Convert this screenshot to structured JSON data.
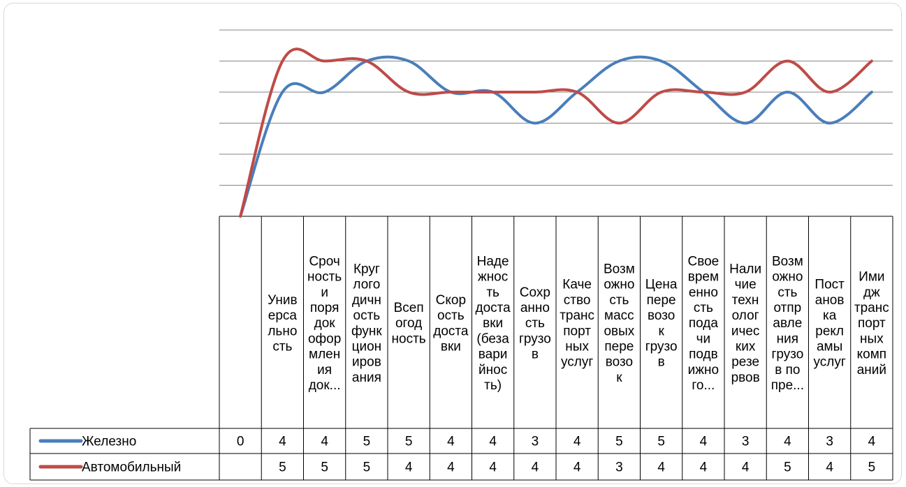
{
  "chart_data": {
    "type": "line",
    "title": "",
    "xlabel": "",
    "ylabel": "",
    "ylim": [
      0,
      6
    ],
    "grid": true,
    "legend": "data-table-left",
    "smooth": true,
    "categories": [
      "",
      "Универсальность",
      "Срочность и порядок оформления док...",
      "Круглогодичность функционирования",
      "Всепогодность",
      "Скорость доставки",
      "Надежность доставки (безаварийность)",
      "Сохранность грузов",
      "Качество транспортных услуг",
      "Возможность массовых перевозок",
      "Цена перевозок грузов",
      "Своевременность подачи подвижного...",
      "Наличие технологических резервов",
      "Возможность отправления грузов в по пре...",
      "Постановка рекламы услуг",
      "Имидж транспортных компаний"
    ],
    "category_lines": [
      [
        ""
      ],
      [
        "Унив",
        "ерса",
        "льно",
        "сть"
      ],
      [
        "Сроч",
        "ность",
        "и",
        "поря",
        "док",
        "офор",
        "млен",
        "ия",
        "док..."
      ],
      [
        "Круг",
        "лого",
        "дичн",
        "ость",
        "функ",
        "цион",
        "иров",
        "ания"
      ],
      [
        "Всеп",
        "огод",
        "ность"
      ],
      [
        "Скор",
        "ость",
        "доста",
        "вки"
      ],
      [
        "Наде",
        "жнос",
        "ть",
        "доста",
        "вки",
        "(беза",
        "вари",
        "йнос",
        "ть)"
      ],
      [
        "Сохр",
        "анно",
        "сть",
        "грузо",
        "в"
      ],
      [
        "Каче",
        "ство",
        "транс",
        "порт",
        "ных",
        "услуг"
      ],
      [
        "Возм",
        "ожно",
        "сть",
        "масс",
        "овых",
        "пере",
        "возо",
        "к"
      ],
      [
        "Цена",
        "пере",
        "возо",
        "к",
        "грузо",
        "в"
      ],
      [
        "Свое",
        "врем",
        "енно",
        "сть",
        "пода",
        "чи",
        "подв",
        "ижно",
        "го..."
      ],
      [
        "Нали",
        "чие",
        "техн",
        "олог",
        "ичес",
        "ких",
        "резе",
        "рвов"
      ],
      [
        "Возм",
        "ожно",
        "сть",
        "отпр",
        "авле",
        "ния",
        "грузо",
        "в по",
        "пре..."
      ],
      [
        "Пост",
        "анов",
        "ка",
        "рекл",
        "амы",
        "услуг"
      ],
      [
        "Ими",
        "дж",
        "транс",
        "порт",
        "ных",
        "комп",
        "аний"
      ]
    ],
    "series": [
      {
        "name": "Железно",
        "color": "#4a7ebb",
        "values": [
          0,
          4,
          4,
          5,
          5,
          4,
          4,
          3,
          4,
          5,
          5,
          4,
          3,
          4,
          3,
          4
        ],
        "labels": [
          "0",
          "4",
          "4",
          "5",
          "5",
          "4",
          "4",
          "3",
          "4",
          "5",
          "5",
          "4",
          "3",
          "4",
          "3",
          "4"
        ]
      },
      {
        "name": "Автомобильный",
        "color": "#be4b48",
        "values": [
          0,
          5,
          5,
          5,
          4,
          4,
          4,
          4,
          4,
          3,
          4,
          4,
          4,
          5,
          4,
          5
        ],
        "labels": [
          "",
          "5",
          "5",
          "5",
          "4",
          "4",
          "4",
          "4",
          "4",
          "3",
          "4",
          "4",
          "4",
          "5",
          "4",
          "5"
        ]
      }
    ]
  }
}
